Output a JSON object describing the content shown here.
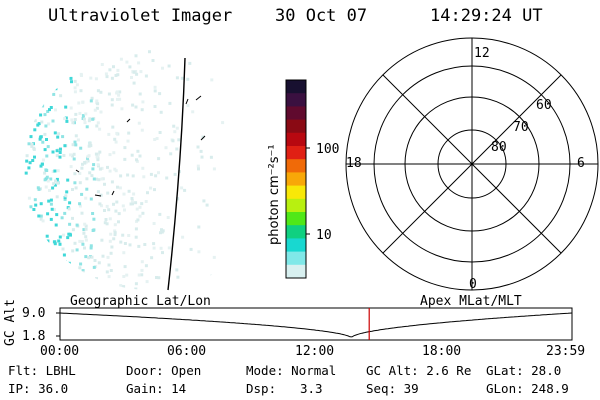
{
  "header": {
    "instrument": "Ultraviolet Imager",
    "date": "30 Oct 07",
    "time": "14:29:24 UT"
  },
  "colorbar": {
    "unit_label": "photon cm⁻²s⁻¹",
    "tick_labels": [
      "100",
      "10"
    ],
    "colors": [
      "#181030",
      "#3a1040",
      "#600a2e",
      "#8a0a14",
      "#b80810",
      "#e02014",
      "#f06a08",
      "#f8a808",
      "#f8e808",
      "#b8f010",
      "#50e818",
      "#10d080",
      "#18d8d0",
      "#80e8e8",
      "#d8f0f0"
    ]
  },
  "polar_plot": {
    "mlt_labels": {
      "top": "12",
      "left": "18",
      "right": "6",
      "bottom": "0"
    },
    "lat_labels": [
      "60",
      "70",
      "80"
    ]
  },
  "timeline": {
    "left_title": "Geographic Lat/Lon",
    "right_title": "Apex MLat/MLT",
    "axis_label": "GC Alt",
    "y_ticks": [
      "9.0",
      "1.8"
    ],
    "x_ticks": [
      "00:00",
      "06:00",
      "12:00",
      "18:00",
      "23:59"
    ],
    "marker_time": "14:29",
    "marker_color": "#cc0000"
  },
  "info_rows": [
    {
      "flt": "Flt: LBHL",
      "door": "Door: Open",
      "mode": "Mode: Normal",
      "gcalt": "GC Alt: 2.6 Re",
      "glat": "GLat: 28.0"
    },
    {
      "ip": "IP: 36.0",
      "gain": "Gain: 14",
      "dsp_label": "Dsp:",
      "dsp_value": "3.3",
      "seq": "Seq: 39",
      "glon": "GLon: 248.9"
    }
  ]
}
